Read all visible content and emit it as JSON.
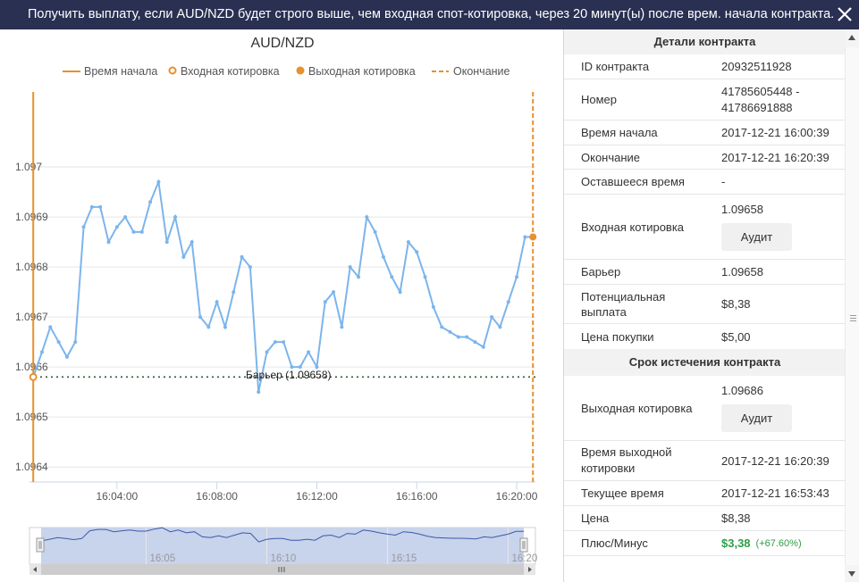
{
  "header": {
    "message": "Получить выплату, если AUD/NZD будет строго выше, чем входная спот-котировка, через 20 минут(ы) после врем. начала контракта."
  },
  "chart": {
    "title": "AUD/NZD",
    "legend": [
      {
        "label": "Время начала",
        "kind": "solid-line",
        "color": "#e8902e"
      },
      {
        "label": "Входная котировка",
        "kind": "ring",
        "color": "#e8902e"
      },
      {
        "label": "Выходная котировка",
        "kind": "dot",
        "color": "#e8902e"
      },
      {
        "label": "Окончание",
        "kind": "dashed-line",
        "color": "#e8902e"
      }
    ],
    "barrier_label": "Барьер (1.09658)",
    "navigator_ticks": [
      "16:05",
      "16:10",
      "16:15",
      "16:20"
    ],
    "colors": {
      "series": "#7cb5ec",
      "markers": "#e8902e",
      "barrier": "#2f5a2f",
      "navigator_fill": "#c8d3ec"
    }
  },
  "chart_data": {
    "type": "line",
    "title": "AUD/NZD",
    "x_unit": "time",
    "x_ticks": [
      "16:04:00",
      "16:08:00",
      "16:12:00",
      "16:16:00",
      "16:20:00"
    ],
    "y_ticks": [
      "1.0964",
      "1.0965",
      "1.0966",
      "1.0967",
      "1.0968",
      "1.0969",
      "1.097"
    ],
    "ylim": [
      1.09637,
      1.09715
    ],
    "xlim": [
      "16:00:30",
      "16:20:45"
    ],
    "start_time": "16:00:39",
    "end_time": "16:20:39",
    "barrier": 1.09658,
    "series": [
      {
        "x": [
          "16:00:39",
          "16:01:00",
          "16:01:20",
          "16:01:40",
          "16:02:00",
          "16:02:20",
          "16:02:40",
          "16:03:00",
          "16:03:20",
          "16:03:40",
          "16:04:00",
          "16:04:20",
          "16:04:40",
          "16:05:00",
          "16:05:20",
          "16:05:40",
          "16:06:00",
          "16:06:20",
          "16:06:40",
          "16:07:00",
          "16:07:20",
          "16:07:40",
          "16:08:00",
          "16:08:20",
          "16:08:40",
          "16:09:00",
          "16:09:20",
          "16:09:40",
          "16:10:00",
          "16:10:20",
          "16:10:40",
          "16:11:00",
          "16:11:20",
          "16:11:40",
          "16:12:00",
          "16:12:20",
          "16:12:40",
          "16:13:00",
          "16:13:20",
          "16:13:40",
          "16:14:00",
          "16:14:20",
          "16:14:40",
          "16:15:00",
          "16:15:20",
          "16:15:40",
          "16:16:00",
          "16:16:20",
          "16:16:40",
          "16:17:00",
          "16:17:20",
          "16:17:40",
          "16:18:00",
          "16:18:20",
          "16:18:40",
          "16:19:00",
          "16:19:20",
          "16:19:40",
          "16:20:00",
          "16:20:20",
          "16:20:39"
        ],
        "y": [
          1.09658,
          1.09663,
          1.09668,
          1.09665,
          1.09662,
          1.09665,
          1.09688,
          1.09692,
          1.09692,
          1.09685,
          1.09688,
          1.0969,
          1.09687,
          1.09687,
          1.09693,
          1.09697,
          1.09685,
          1.0969,
          1.09682,
          1.09685,
          1.0967,
          1.09668,
          1.09673,
          1.09668,
          1.09675,
          1.09682,
          1.0968,
          1.09655,
          1.09663,
          1.09665,
          1.09665,
          1.0966,
          1.0966,
          1.09663,
          1.0966,
          1.09673,
          1.09675,
          1.09668,
          1.0968,
          1.09678,
          1.0969,
          1.09687,
          1.09682,
          1.09678,
          1.09675,
          1.09685,
          1.09683,
          1.09678,
          1.09672,
          1.09668,
          1.09667,
          1.09666,
          1.09666,
          1.09665,
          1.09664,
          1.0967,
          1.09668,
          1.09673,
          1.09678,
          1.09686,
          1.09686
        ]
      }
    ]
  },
  "details": {
    "title": "Детали контракта",
    "rows": [
      {
        "label": "ID контракта",
        "value": "20932511928"
      },
      {
        "label": "Номер",
        "value": "41785605448 - 41786691888"
      },
      {
        "label": "Время начала",
        "value": "2017-12-21 16:00:39"
      },
      {
        "label": "Окончание",
        "value": "2017-12-21 16:20:39"
      },
      {
        "label": "Оставшееся время",
        "value": "-"
      },
      {
        "label": "Входная котировка",
        "value": "1.09658",
        "button": "Аудит"
      },
      {
        "label": "Барьер",
        "value": "1.09658"
      },
      {
        "label": "Потенциальная выплата",
        "value": "$8,38"
      },
      {
        "label": "Цена покупки",
        "value": "$5,00"
      }
    ]
  },
  "expiry": {
    "title": "Срок истечения контракта",
    "rows": [
      {
        "label": "Выходная котировка",
        "value": "1.09686",
        "button": "Аудит"
      },
      {
        "label": "Время выходной котировки",
        "value": "2017-12-21 16:20:39"
      },
      {
        "label": "Текущее время",
        "value": "2017-12-21 16:53:43"
      },
      {
        "label": "Цена",
        "value": "$8,38"
      },
      {
        "label": "Плюс/Минус",
        "value": "$3,38",
        "extra": "(+67.60%)"
      }
    ]
  }
}
